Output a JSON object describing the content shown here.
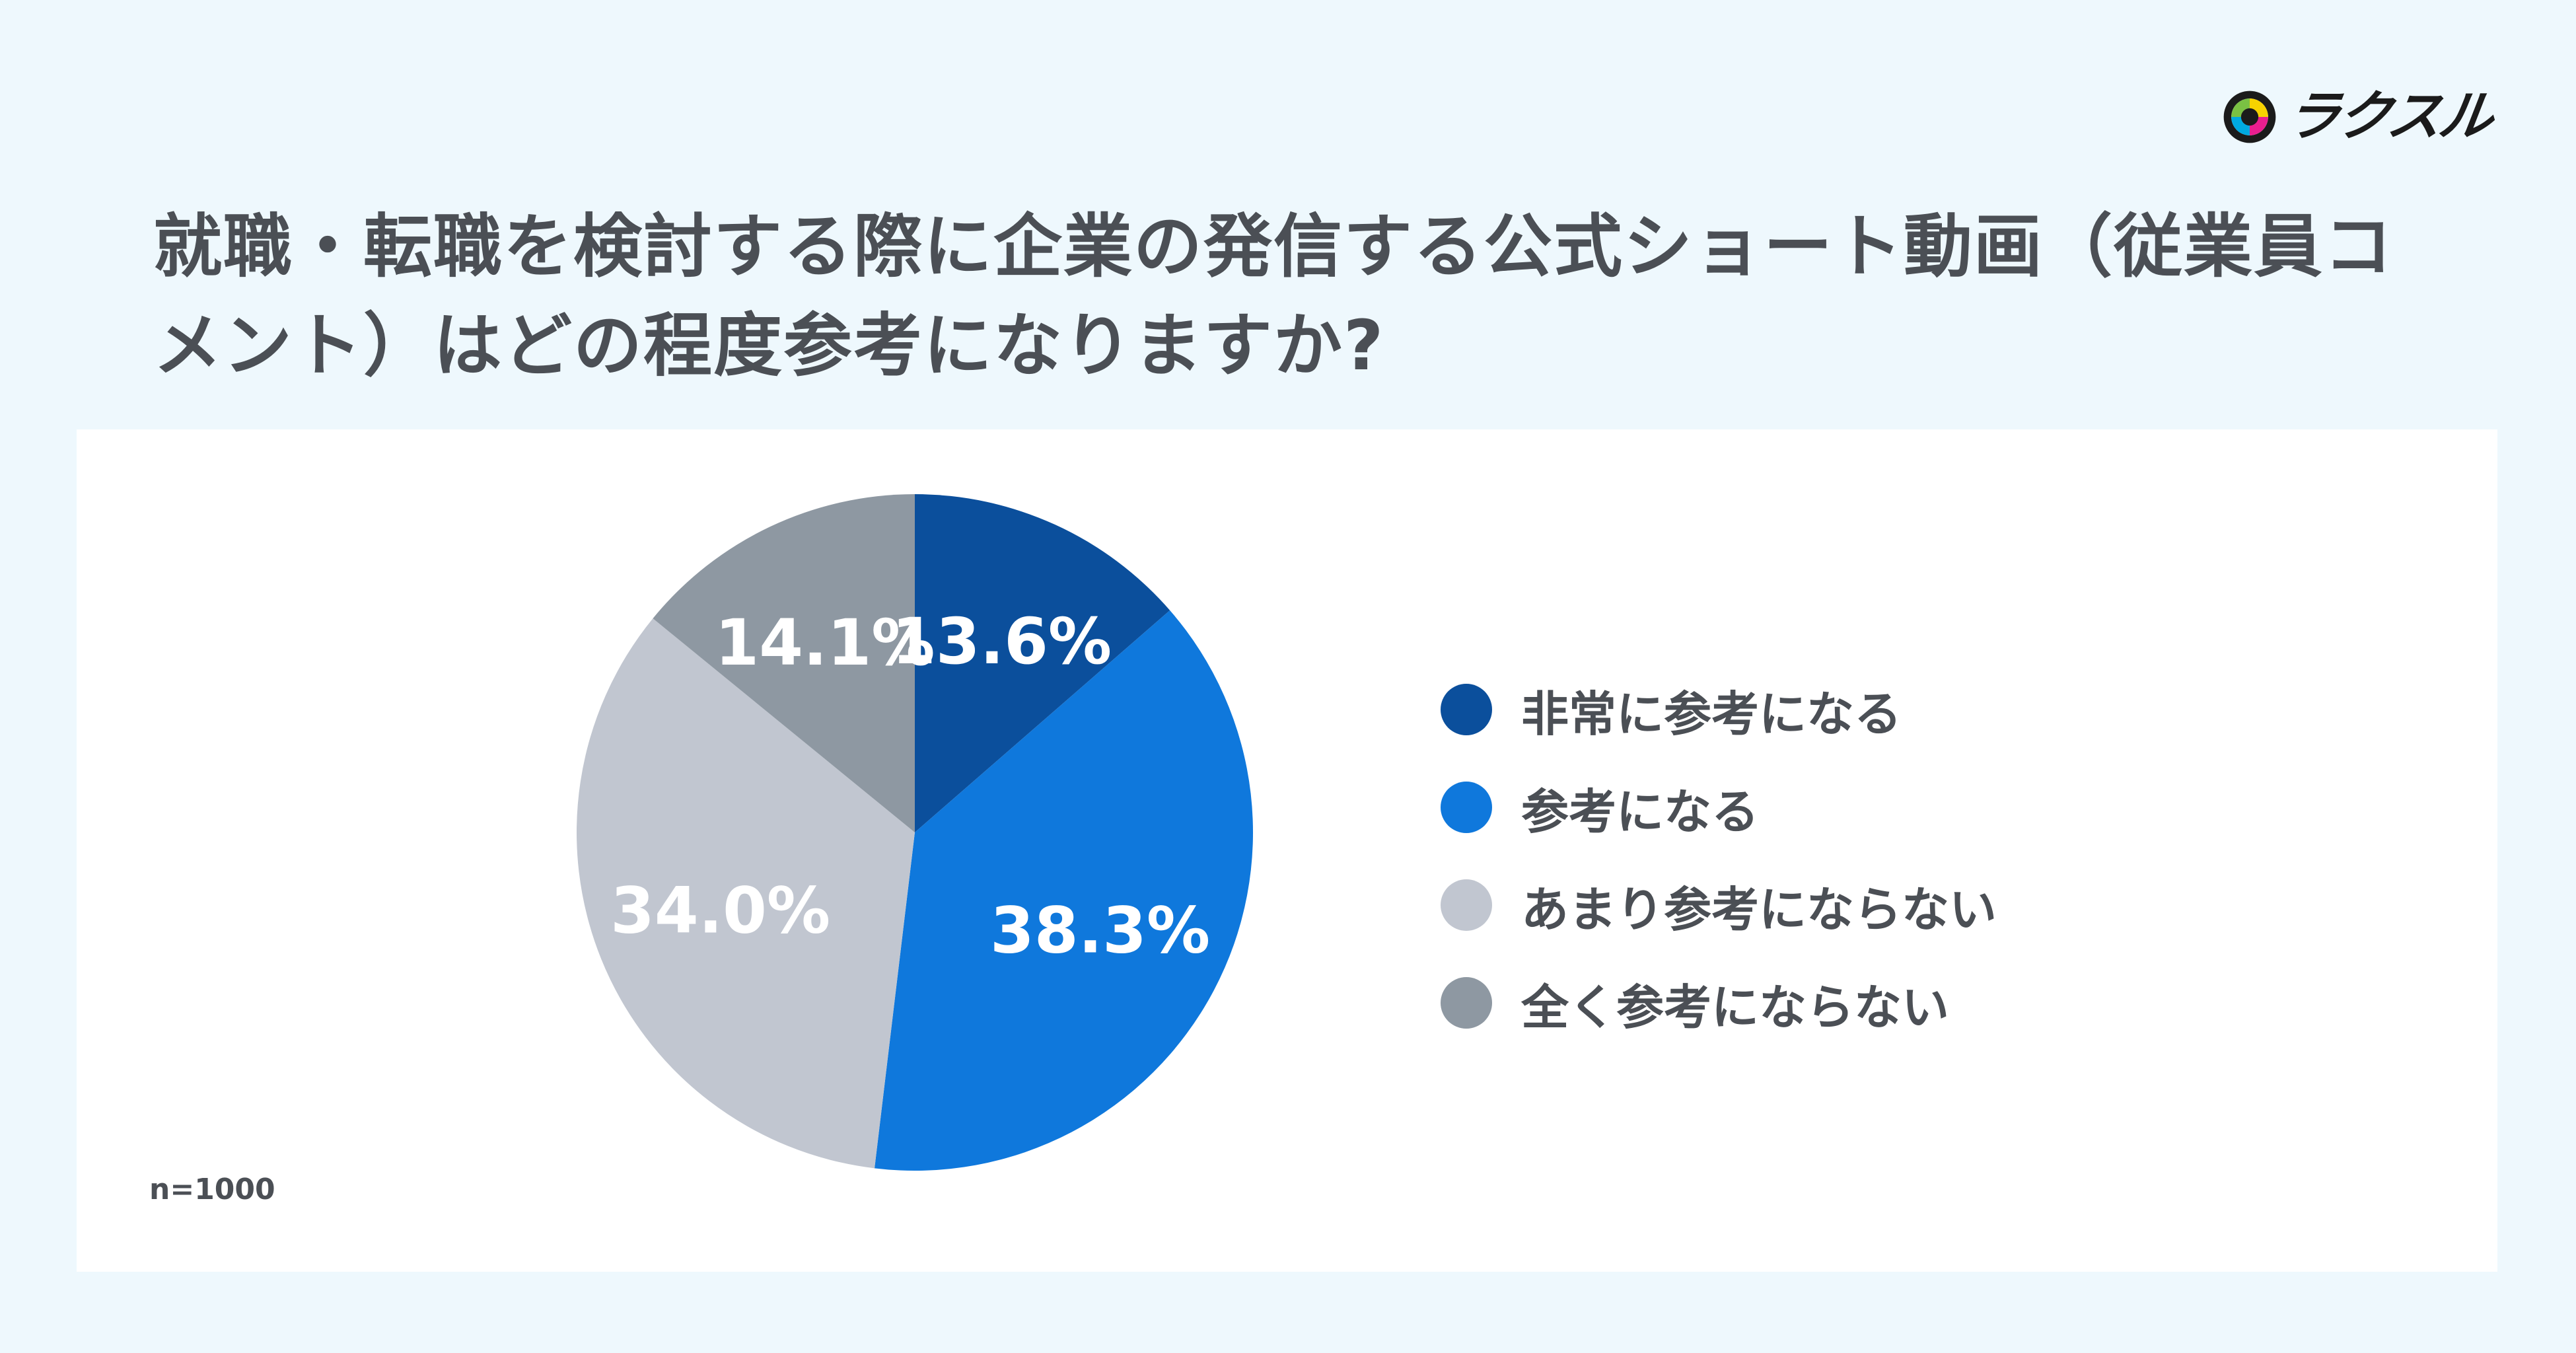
{
  "brand": {
    "name": "ラクスル"
  },
  "title": "就職・転職を検討する際に企業の発信する公式ショート動画（従業員コメント）はどの程度参考になりますか?",
  "sample_size": "n=1000",
  "chart_data": {
    "type": "pie",
    "title": "就職・転職を検討する際に企業の発信する公式ショート動画（従業員コメント）はどの程度参考になりますか?",
    "categories": [
      "非常に参考になる",
      "参考になる",
      "あまり参考にならない",
      "全く参考にならない"
    ],
    "values": [
      13.6,
      38.3,
      34.0,
      14.1
    ],
    "labels": [
      "13.6%",
      "38.3%",
      "34.0%",
      "14.1%"
    ],
    "colors": [
      "#0b4f9c",
      "#0f78dc",
      "#c1c6d0",
      "#8e98a2"
    ],
    "legend_position": "right",
    "start": "top",
    "direction": "clockwise",
    "unit": "%"
  }
}
